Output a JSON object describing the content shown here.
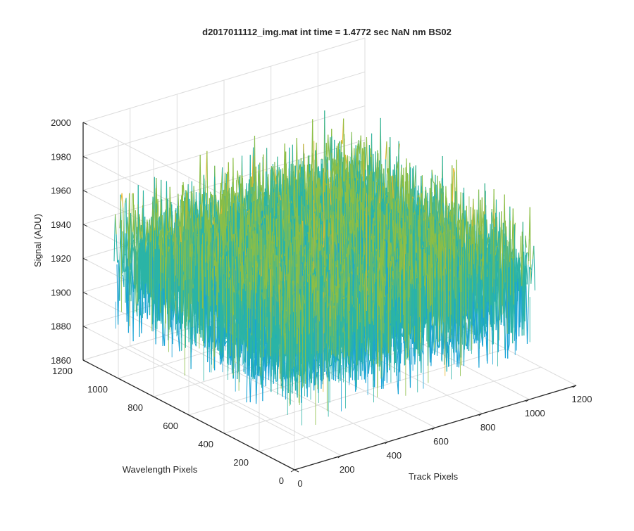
{
  "chart_data": {
    "type": "surface",
    "title": "d2017011112_img.mat int time = 1.4772 sec  NaN nm BS02",
    "xlabel": "Track Pixels",
    "ylabel": "Wavelength Pixels",
    "zlabel": "Signal (ADU)",
    "xlim": [
      0,
      1200
    ],
    "ylim": [
      0,
      1200
    ],
    "zlim": [
      1860,
      2000
    ],
    "xticks": [
      "0",
      "200",
      "400",
      "600",
      "800",
      "1000",
      "1200"
    ],
    "yticks": [
      "0",
      "200",
      "400",
      "600",
      "800",
      "1000",
      "1200"
    ],
    "zticks": [
      "1860",
      "1880",
      "1900",
      "1920",
      "1940",
      "1960",
      "1980",
      "2000"
    ],
    "grid": true,
    "colormap": "parula",
    "surface_extent": {
      "x": [
        0,
        1024
      ],
      "y": [
        0,
        1024
      ]
    },
    "surface_signal": {
      "mean": 1925,
      "noise_min": 1875,
      "noise_max": 1985
    },
    "colors": {
      "low": "#1aa3d6",
      "mid": "#2bb4a6",
      "high_green": "#8cbe46",
      "high": "#e8b62e",
      "axis": "#262626",
      "grid": "#dcdcdc"
    }
  }
}
